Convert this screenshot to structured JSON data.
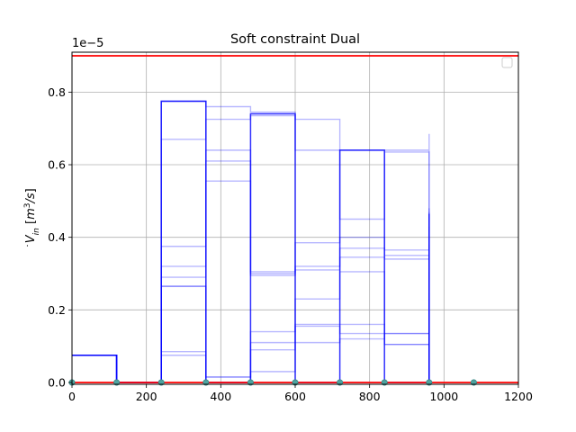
{
  "chart_data": {
    "type": "line",
    "title": "Soft constraint Dual",
    "ylabel": "$\\dot{V}_{in}$ [$m^3/s$]",
    "ylabel_parts": {
      "main": "V",
      "sub": "in",
      "unit_open": " [",
      "unit_base": "m",
      "unit_sup": "3",
      "unit_mid": "/s",
      "unit_close": "]"
    },
    "scale_label": "1e−5",
    "scale_exponent": -5,
    "xlim": [
      0,
      1200
    ],
    "ylim": [
      -0.005,
      0.91
    ],
    "x_ticks": [
      0,
      200,
      400,
      600,
      800,
      1000,
      1200
    ],
    "x_tick_labels": [
      "0",
      "200",
      "400",
      "600",
      "800",
      "1000",
      "1200"
    ],
    "y_ticks": [
      0.0,
      0.2,
      0.4,
      0.6,
      0.8
    ],
    "y_tick_labels": [
      "0.0",
      "0.2",
      "0.4",
      "0.6",
      "0.8"
    ],
    "grid": true,
    "legend": "top-right, empty",
    "colors": {
      "series": "#0000ff",
      "bound": "#ff0000",
      "marker": "#4fa3a0",
      "grid": "#b0b0b0"
    },
    "bounds": {
      "upper": 0.9,
      "lower": 0.0
    },
    "step_edges": [
      0,
      120,
      240,
      360,
      480,
      600,
      720,
      840,
      960
    ],
    "main_series": [
      0.075,
      0.0,
      0.775,
      0.0,
      0.74,
      0.0,
      0.64,
      0.0,
      0.465
    ],
    "scenario_series": [
      [
        0.075,
        0.0,
        0.775,
        0.76,
        0.745,
        0.725,
        0.64,
        0.64,
        0.685
      ],
      [
        0.075,
        0.0,
        0.67,
        0.725,
        0.735,
        0.64,
        0.45,
        0.635,
        0.635
      ],
      [
        0.075,
        0.0,
        0.375,
        0.64,
        0.305,
        0.385,
        0.4,
        0.365,
        0.48
      ],
      [
        0.075,
        0.0,
        0.32,
        0.61,
        0.3,
        0.32,
        0.37,
        0.35,
        0.47
      ],
      [
        0.075,
        0.0,
        0.29,
        0.555,
        0.295,
        0.31,
        0.345,
        0.34,
        0.43
      ],
      [
        0.075,
        0.0,
        0.265,
        0.015,
        0.14,
        0.23,
        0.305,
        0.135,
        0.38
      ],
      [
        0.075,
        0.0,
        0.085,
        0.015,
        0.11,
        0.16,
        0.16,
        0.105,
        0.305
      ],
      [
        0.075,
        0.0,
        0.075,
        0.0,
        0.09,
        0.155,
        0.135,
        0.105,
        0.245
      ],
      [
        0.075,
        0.0,
        0.265,
        0.0,
        0.03,
        0.11,
        0.12,
        0.135,
        0.23
      ],
      [
        0.075,
        0.0,
        0.775,
        0.0,
        0.0,
        0.0,
        0.0,
        0.0,
        0.045
      ]
    ],
    "markers_x": [
      0,
      120,
      240,
      360,
      480,
      600,
      720,
      840,
      960,
      1080
    ],
    "markers_y": [
      0,
      0,
      0,
      0,
      0,
      0,
      0,
      0,
      0,
      0
    ]
  }
}
